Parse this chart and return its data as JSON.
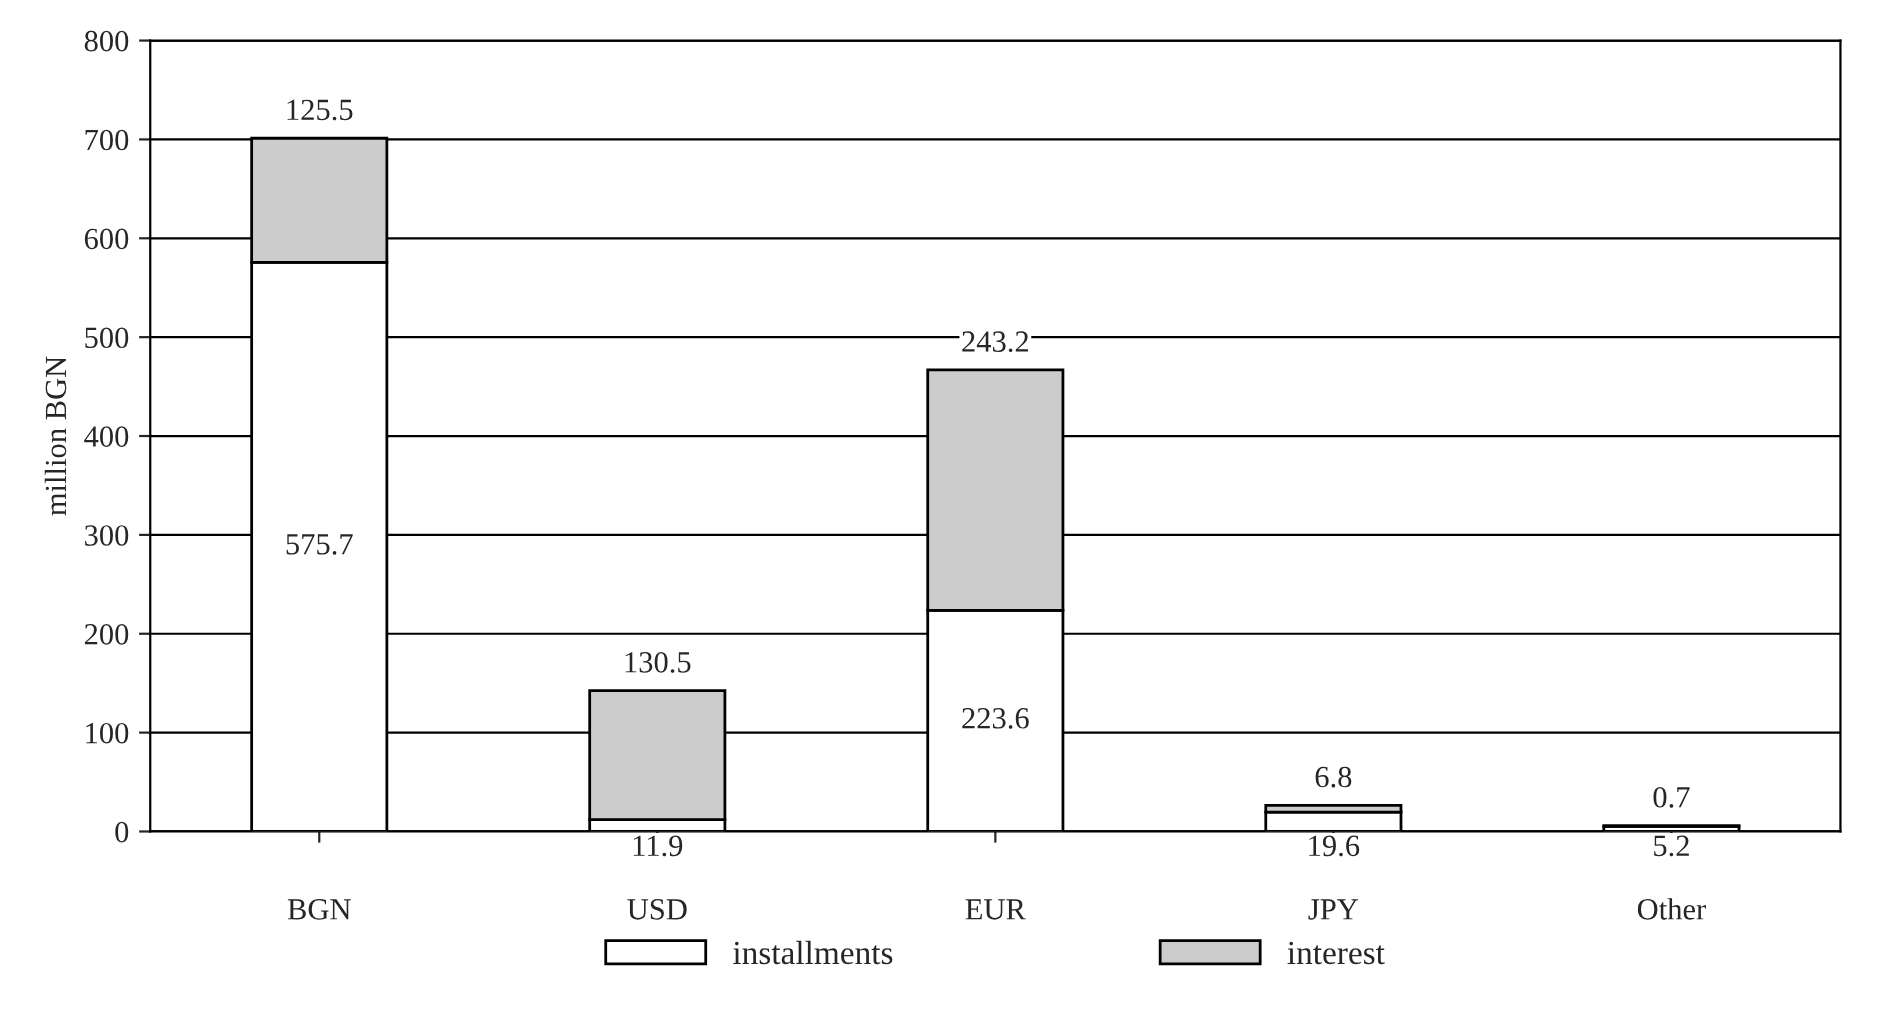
{
  "chart_data": {
    "type": "bar",
    "stacked": true,
    "ylabel": "million BGN",
    "categories": [
      "BGN",
      "USD",
      "EUR",
      "JPY",
      "Other"
    ],
    "series": [
      {
        "name": "installments",
        "color": "#ffffff",
        "values": [
          575.7,
          11.9,
          223.6,
          19.6,
          5.2
        ]
      },
      {
        "name": "interest",
        "color": "#cccccc",
        "values": [
          125.5,
          130.5,
          243.2,
          6.8,
          0.7
        ]
      }
    ],
    "ylim": [
      0,
      800
    ],
    "yticks": [
      0,
      100,
      200,
      300,
      400,
      500,
      600,
      700,
      800
    ],
    "grid": "y",
    "legend": "bottom",
    "data_labels": true
  }
}
